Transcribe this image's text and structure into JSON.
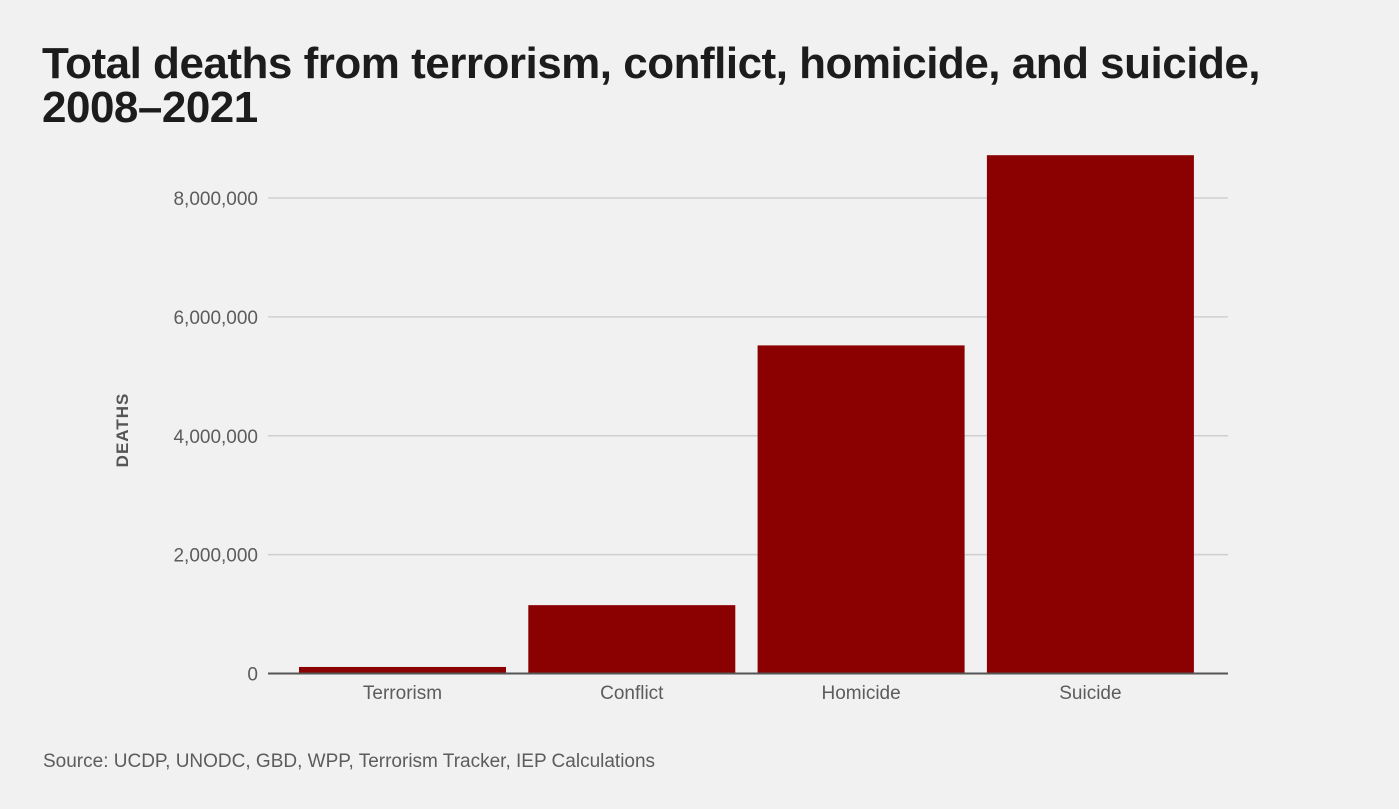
{
  "chart_data": {
    "type": "bar",
    "title": "Total deaths from terrorism, conflict, homicide, and suicide, 2008–2021",
    "categories": [
      "Terrorism",
      "Conflict",
      "Homicide",
      "Suicide"
    ],
    "values": [
      110000,
      1150000,
      5520000,
      8720000
    ],
    "xlabel": "",
    "ylabel": "DEATHS",
    "ylim": [
      0,
      9200000
    ],
    "yticks": [
      0,
      2000000,
      4000000,
      6000000,
      8000000
    ],
    "ytick_labels": [
      "0",
      "2,000,000",
      "4,000,000",
      "6,000,000",
      "8,000,000"
    ],
    "grid": true,
    "bar_color": "#8b0000",
    "source": "Source: UCDP, UNODC, GBD, WPP, Terrorism Tracker, IEP Calculations"
  }
}
